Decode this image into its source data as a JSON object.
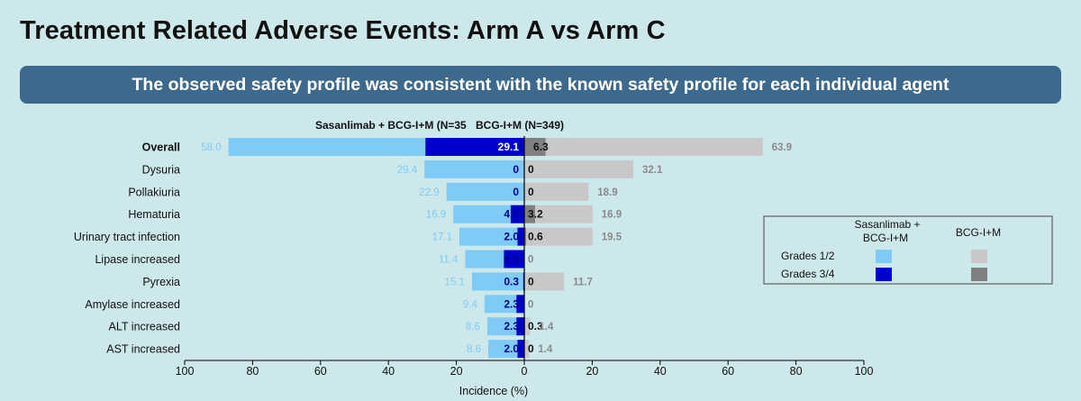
{
  "page": {
    "title": "Treatment Related Adverse Events: Arm A vs Arm C",
    "banner": "The observed safety profile was consistent with the known safety profile for each individual agent"
  },
  "colors": {
    "background": "#cde8ea",
    "banner": "#3d6a8c",
    "left_grade12": "#7fcbf7",
    "left_grade34": "#0000cc",
    "right_grade12": "#c8c8c8",
    "right_grade34": "#808080",
    "left_label_grade12": "#7fcbf7",
    "right_label_grade12": "#8a8a8a"
  },
  "chart_data": {
    "type": "bar",
    "orientation": "horizontal-butterfly",
    "left_header": "Sasanlimab + BCG-I+M (N=35",
    "right_header": "BCG-I+M (N=349)",
    "xlabel": "Incidence (%)",
    "xlim": [
      -100,
      100
    ],
    "xticks": [
      -100,
      -80,
      -60,
      -40,
      -20,
      0,
      20,
      40,
      60,
      80,
      100
    ],
    "xtick_labels": [
      "100",
      "80",
      "60",
      "40",
      "20",
      "0",
      "20",
      "40",
      "60",
      "80",
      "100"
    ],
    "categories": [
      "Overall",
      "Dysuria",
      "Pollakiuria",
      "Hematuria",
      "Urinary tract infection",
      "Lipase increased",
      "Pyrexia",
      "Amylase increased",
      "ALT increased",
      "AST increased"
    ],
    "bold_categories": [
      "Overall"
    ],
    "series": [
      {
        "name": "Sasanlimab + BCG-I+M",
        "grade12_label": [
          "58.0",
          "29.4",
          "22.9",
          "16.9",
          "17.1",
          "11.4",
          "15.1",
          "9.4",
          "8.6",
          "8.6"
        ],
        "grade12_values": [
          58.0,
          29.4,
          22.9,
          16.9,
          17.1,
          11.4,
          15.1,
          9.4,
          8.6,
          8.6
        ],
        "grade34_label": [
          "29.1",
          "0",
          "0",
          "4.0",
          "2.0",
          "6.0",
          "0.3",
          "2.3",
          "2.3",
          "2.0"
        ],
        "grade34_values": [
          29.1,
          0,
          0,
          4.0,
          2.0,
          6.0,
          0.3,
          2.3,
          2.3,
          2.0
        ]
      },
      {
        "name": "BCG-I+M",
        "grade12_label": [
          "63.9",
          "32.1",
          "18.9",
          "16.9",
          "19.5",
          "0",
          "11.7",
          "0",
          "1.4",
          "1.4"
        ],
        "grade12_values": [
          63.9,
          32.1,
          18.9,
          16.9,
          19.5,
          0,
          11.7,
          0,
          1.4,
          1.4
        ],
        "grade34_label": [
          "6.3",
          "0",
          "0",
          "3.2",
          "0.6",
          "",
          "0",
          "",
          "0.3",
          "0"
        ],
        "grade34_values": [
          6.3,
          0,
          0,
          3.2,
          0.6,
          0,
          0,
          0,
          0.3,
          0
        ]
      }
    ],
    "legend": {
      "col1": "Sasanlimab +",
      "col1b": "BCG-I+M",
      "col2": "BCG-I+M",
      "row1": "Grades 1/2",
      "row2": "Grades 3/4",
      "placement": "right"
    }
  }
}
